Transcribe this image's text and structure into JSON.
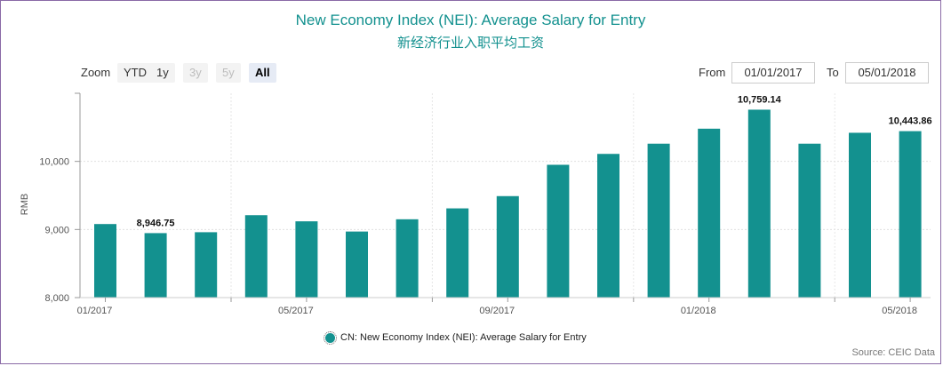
{
  "title": "New Economy Index (NEI): Average Salary for Entry",
  "subtitle": "新经济行业入职平均工资",
  "zoom": {
    "label": "Zoom",
    "buttons": [
      "YTD",
      "1y",
      "3y",
      "5y",
      "All"
    ],
    "active": "All",
    "disabled": [
      "3y",
      "5y"
    ]
  },
  "range": {
    "from_label": "From",
    "from_value": "01/01/2017",
    "to_label": "To",
    "to_value": "05/01/2018"
  },
  "legend_label": "CN: New Economy Index (NEI): Average Salary for Entry",
  "source": "Source: CEIC Data",
  "colors": {
    "bar": "#13918f",
    "title": "#13918f"
  },
  "chart_data": {
    "type": "bar",
    "ylabel": "RMB",
    "ylim": [
      8000,
      11000
    ],
    "yticks": [
      8000,
      9000,
      10000
    ],
    "ytick_labels": [
      "8,000",
      "9,000",
      "10,000"
    ],
    "categories": [
      "2017-01",
      "2017-02",
      "2017-03",
      "2017-04",
      "2017-05",
      "2017-06",
      "2017-07",
      "2017-08",
      "2017-09",
      "2017-10",
      "2017-11",
      "2017-12",
      "2018-01",
      "2018-02",
      "2018-03",
      "2018-04",
      "2018-05"
    ],
    "xtick_labels": [
      {
        "index": 0,
        "label": "01/2017"
      },
      {
        "index": 4,
        "label": "05/2017"
      },
      {
        "index": 8,
        "label": "09/2017"
      },
      {
        "index": 12,
        "label": "01/2018"
      },
      {
        "index": 16,
        "label": "05/2018"
      }
    ],
    "series": [
      {
        "name": "CN: New Economy Index (NEI): Average Salary for Entry",
        "values": [
          9080,
          8946.75,
          8960,
          9210,
          9120,
          8970,
          9150,
          9310,
          9490,
          9950,
          10110,
          10260,
          10480,
          10759.14,
          10260,
          10420,
          10443.86
        ]
      }
    ],
    "data_labels": [
      {
        "index": 1,
        "label": "8,946.75"
      },
      {
        "index": 13,
        "label": "10,759.14"
      },
      {
        "index": 16,
        "label": "10,443.86"
      }
    ],
    "grid": true,
    "legend": "bottom"
  }
}
